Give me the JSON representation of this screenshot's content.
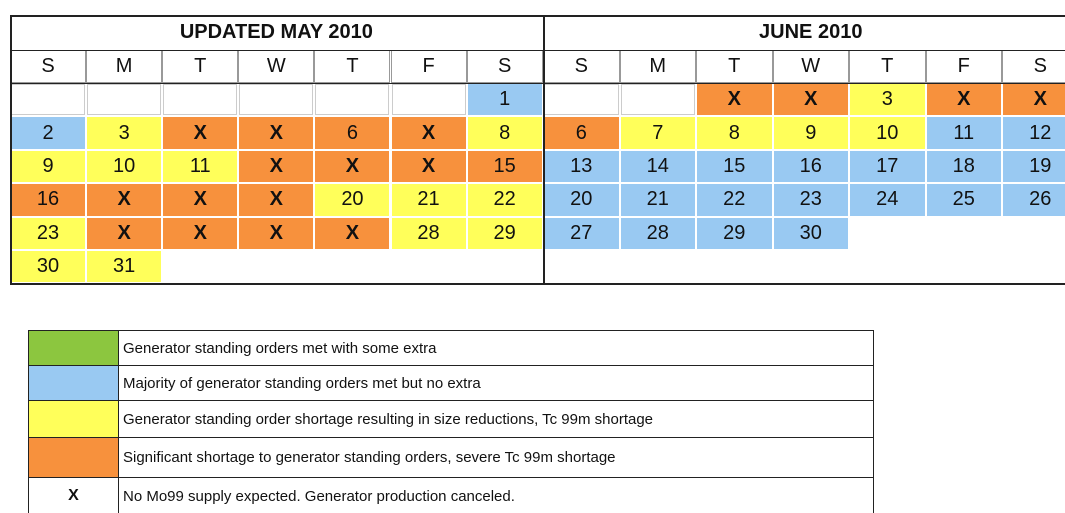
{
  "calendars": [
    {
      "title": "UPDATED MAY 2010",
      "days": [
        "S",
        "M",
        "T",
        "W",
        "T",
        "F",
        "S"
      ],
      "weeks": [
        [
          null,
          null,
          null,
          null,
          null,
          null,
          {
            "text": 1,
            "color": "#99c9f2"
          }
        ],
        [
          {
            "text": 2,
            "color": "#99c9f2"
          },
          {
            "text": 3,
            "color": "#ffff5a"
          },
          {
            "text": "X",
            "color": "#f7913d"
          },
          {
            "text": "X",
            "color": "#f7913d"
          },
          {
            "text": 6,
            "color": "#f7913d"
          },
          {
            "text": "X",
            "color": "#f7913d"
          },
          {
            "text": 8,
            "color": "#ffff5a"
          }
        ],
        [
          {
            "text": 9,
            "color": "#ffff5a"
          },
          {
            "text": 10,
            "color": "#ffff5a"
          },
          {
            "text": 11,
            "color": "#ffff5a"
          },
          {
            "text": "X",
            "color": "#f7913d"
          },
          {
            "text": "X",
            "color": "#f7913d"
          },
          {
            "text": "X",
            "color": "#f7913d"
          },
          {
            "text": 15,
            "color": "#f7913d"
          }
        ],
        [
          {
            "text": 16,
            "color": "#f7913d"
          },
          {
            "text": "X",
            "color": "#f7913d"
          },
          {
            "text": "X",
            "color": "#f7913d"
          },
          {
            "text": "X",
            "color": "#f7913d"
          },
          {
            "text": 20,
            "color": "#ffff5a"
          },
          {
            "text": 21,
            "color": "#ffff5a"
          },
          {
            "text": 22,
            "color": "#ffff5a"
          }
        ],
        [
          {
            "text": 23,
            "color": "#ffff5a"
          },
          {
            "text": "X",
            "color": "#f7913d"
          },
          {
            "text": "X",
            "color": "#f7913d"
          },
          {
            "text": "X",
            "color": "#f7913d"
          },
          {
            "text": "X",
            "color": "#f7913d"
          },
          {
            "text": 28,
            "color": "#ffff5a"
          },
          {
            "text": 29,
            "color": "#ffff5a"
          }
        ],
        [
          {
            "text": 30,
            "color": "#ffff5a"
          },
          {
            "text": 31,
            "color": "#ffff5a"
          }
        ]
      ]
    },
    {
      "title": "JUNE 2010",
      "days": [
        "S",
        "M",
        "T",
        "W",
        "T",
        "F",
        "S"
      ],
      "weeks": [
        [
          null,
          null,
          {
            "text": "X",
            "color": "#f7913d"
          },
          {
            "text": "X",
            "color": "#f7913d"
          },
          {
            "text": 3,
            "color": "#ffff5a"
          },
          {
            "text": "X",
            "color": "#f7913d"
          },
          {
            "text": "X",
            "color": "#f7913d"
          }
        ],
        [
          {
            "text": 6,
            "color": "#f7913d"
          },
          {
            "text": 7,
            "color": "#ffff5a"
          },
          {
            "text": 8,
            "color": "#ffff5a"
          },
          {
            "text": 9,
            "color": "#ffff5a"
          },
          {
            "text": 10,
            "color": "#ffff5a"
          },
          {
            "text": 11,
            "color": "#99c9f2"
          },
          {
            "text": 12,
            "color": "#99c9f2"
          }
        ],
        [
          {
            "text": 13,
            "color": "#99c9f2"
          },
          {
            "text": 14,
            "color": "#99c9f2"
          },
          {
            "text": 15,
            "color": "#99c9f2"
          },
          {
            "text": 16,
            "color": "#99c9f2"
          },
          {
            "text": 17,
            "color": "#99c9f2"
          },
          {
            "text": 18,
            "color": "#99c9f2"
          },
          {
            "text": 19,
            "color": "#99c9f2"
          }
        ],
        [
          {
            "text": 20,
            "color": "#99c9f2"
          },
          {
            "text": 21,
            "color": "#99c9f2"
          },
          {
            "text": 22,
            "color": "#99c9f2"
          },
          {
            "text": 23,
            "color": "#99c9f2"
          },
          {
            "text": 24,
            "color": "#99c9f2"
          },
          {
            "text": 25,
            "color": "#99c9f2"
          },
          {
            "text": 26,
            "color": "#99c9f2"
          }
        ],
        [
          {
            "text": 27,
            "color": "#99c9f2"
          },
          {
            "text": 28,
            "color": "#99c9f2"
          },
          {
            "text": 29,
            "color": "#99c9f2"
          },
          {
            "text": 30,
            "color": "#99c9f2"
          }
        ],
        []
      ]
    }
  ],
  "legend": [
    {
      "color": "#8cc63f",
      "text": "Generator standing orders met with some extra"
    },
    {
      "color": "#99c9f2",
      "text": "Majority of generator standing orders met but no extra"
    },
    {
      "color": "#ffff5a",
      "text": "Generator standing order shortage resulting in size reductions, Tc 99m shortage"
    },
    {
      "color": "#f7913d",
      "text": "Significant shortage to generator standing orders, severe Tc 99m shortage"
    },
    {
      "symbol": "X",
      "text": "No Mo99 supply expected. Generator production canceled."
    }
  ]
}
